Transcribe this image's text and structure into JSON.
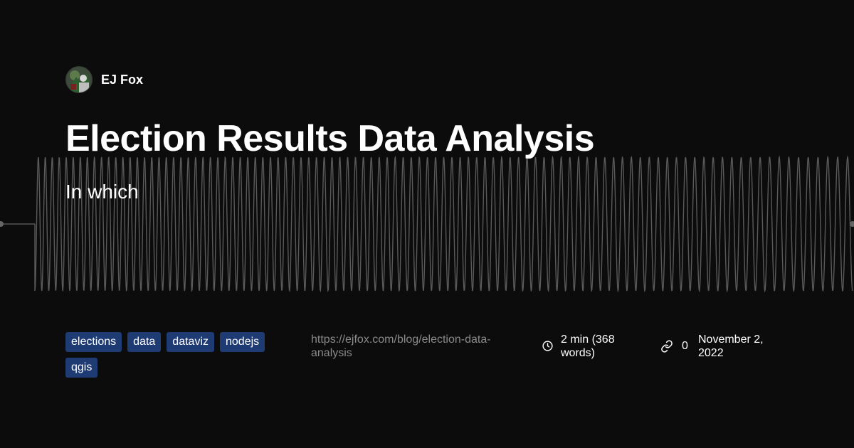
{
  "author": {
    "name": "EJ Fox"
  },
  "post": {
    "title": "Election Results Data Analysis",
    "subtitle": "In which"
  },
  "tags": [
    "elections",
    "data",
    "dataviz",
    "nodejs",
    "qgis"
  ],
  "meta": {
    "url": "https://ejfox.com/blog/election-data-analysis",
    "reading_time": "2 min (368 words)",
    "link_count": "0",
    "date": "November 2, 2022"
  },
  "icons": {
    "reading_time": "clock-icon",
    "links": "link-icon"
  },
  "colors": {
    "background": "#0c0c0c",
    "tag_bg": "#1f3b73",
    "wave": "#555555",
    "url": "#8a8a8a"
  }
}
